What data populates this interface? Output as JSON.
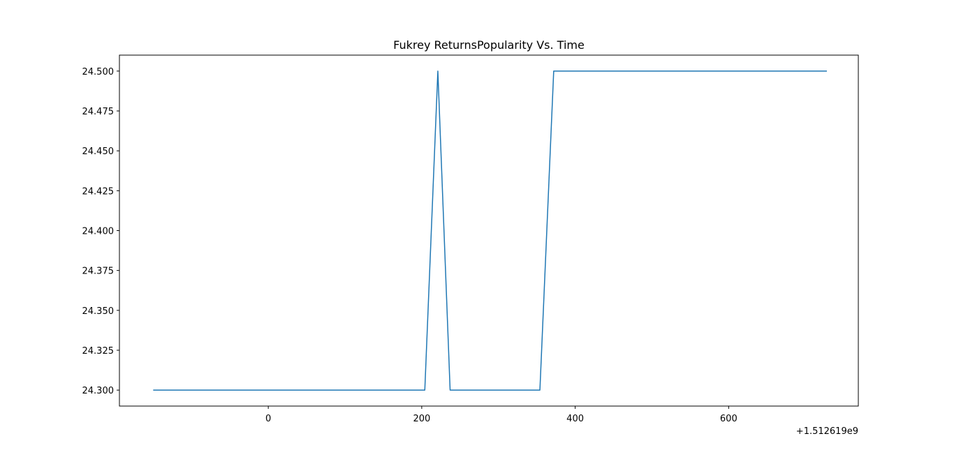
{
  "chart_data": {
    "type": "line",
    "title": "Fukrey ReturnsPopularity Vs. Time",
    "xlabel": "",
    "ylabel": "",
    "x_offset_label": "+1.512619e9",
    "xlim": [
      -194,
      769
    ],
    "ylim": [
      24.29,
      24.51
    ],
    "x_ticks": [
      0,
      200,
      400,
      600
    ],
    "x_tick_labels": [
      "0",
      "200",
      "400",
      "600"
    ],
    "y_ticks": [
      24.3,
      24.325,
      24.35,
      24.375,
      24.4,
      24.425,
      24.45,
      24.475,
      24.5
    ],
    "y_tick_labels": [
      "24.300",
      "24.325",
      "24.350",
      "24.375",
      "24.400",
      "24.425",
      "24.450",
      "24.475",
      "24.500"
    ],
    "grid": false,
    "legend": "none",
    "series": [
      {
        "color": "#1f77b4",
        "x": [
          -150,
          204,
          221,
          237,
          354,
          372,
          728
        ],
        "y": [
          24.3,
          24.3,
          24.5,
          24.3,
          24.3,
          24.5,
          24.5
        ]
      }
    ]
  }
}
